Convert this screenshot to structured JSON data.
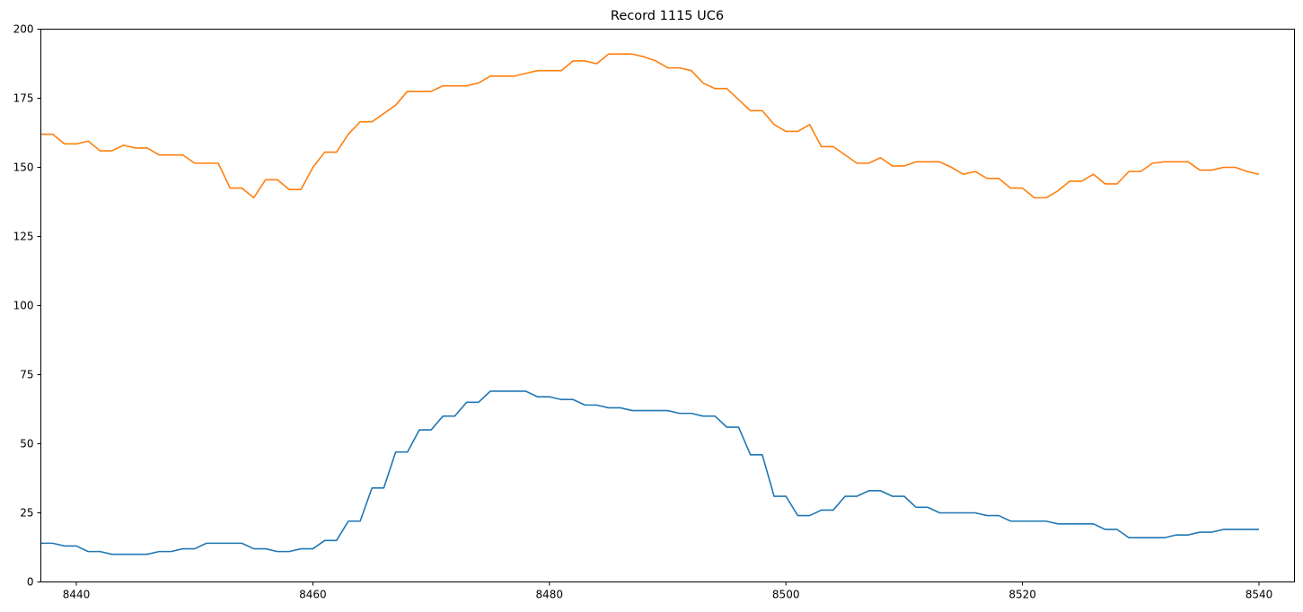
{
  "chart_data": {
    "type": "line",
    "title": "Record 1115 UC6",
    "xlabel": "",
    "ylabel": "",
    "xlim": [
      8437,
      8543
    ],
    "ylim": [
      0,
      200
    ],
    "xticks": [
      8440,
      8460,
      8480,
      8500,
      8520,
      8540
    ],
    "yticks": [
      0,
      25,
      50,
      75,
      100,
      125,
      150,
      175,
      200
    ],
    "grid": false,
    "legend": "none",
    "x": [
      8437,
      8438,
      8439,
      8440,
      8441,
      8442,
      8443,
      8444,
      8445,
      8446,
      8447,
      8448,
      8449,
      8450,
      8451,
      8452,
      8453,
      8454,
      8455,
      8456,
      8457,
      8458,
      8459,
      8460,
      8461,
      8462,
      8463,
      8464,
      8465,
      8466,
      8467,
      8468,
      8469,
      8470,
      8471,
      8472,
      8473,
      8474,
      8475,
      8476,
      8477,
      8478,
      8479,
      8480,
      8481,
      8482,
      8483,
      8484,
      8485,
      8486,
      8487,
      8488,
      8489,
      8490,
      8491,
      8492,
      8493,
      8494,
      8495,
      8496,
      8497,
      8498,
      8499,
      8500,
      8501,
      8502,
      8503,
      8504,
      8505,
      8506,
      8507,
      8508,
      8509,
      8510,
      8511,
      8512,
      8513,
      8514,
      8515,
      8516,
      8517,
      8518,
      8519,
      8520,
      8521,
      8522,
      8523,
      8524,
      8525,
      8526,
      8527,
      8528,
      8529,
      8530,
      8531,
      8532,
      8533,
      8534,
      8535,
      8536,
      8537,
      8538,
      8539,
      8540
    ],
    "series": [
      {
        "color": "#1f77b4",
        "values": [
          14,
          14,
          13,
          13,
          11,
          11,
          10,
          10,
          10,
          10,
          11,
          11,
          12,
          12,
          14,
          14,
          14,
          14,
          12,
          12,
          11,
          11,
          12,
          12,
          15,
          15,
          22,
          22,
          34,
          34,
          47,
          47,
          55,
          55,
          60,
          60,
          65,
          65,
          69,
          69,
          69,
          69,
          67,
          67,
          66,
          66,
          64,
          64,
          63,
          63,
          62,
          62,
          62,
          62,
          61,
          61,
          60,
          60,
          56,
          56,
          46,
          46,
          31,
          31,
          24,
          24,
          26,
          26,
          31,
          31,
          33,
          33,
          31,
          31,
          27,
          27,
          25,
          25,
          25,
          25,
          24,
          24,
          22,
          22,
          22,
          22,
          21,
          21,
          21,
          21,
          19,
          19,
          16,
          16,
          16,
          16,
          17,
          17,
          18,
          18,
          19,
          19,
          19,
          19
        ]
      },
      {
        "color": "#ff7f0e",
        "values": [
          162,
          162,
          158.5,
          158.5,
          159.5,
          156,
          156,
          158,
          157,
          157,
          154.5,
          154.5,
          154.5,
          151.5,
          151.5,
          151.5,
          142.5,
          142.5,
          139,
          145.5,
          145.5,
          142,
          142,
          150,
          155.5,
          155.5,
          162,
          166.5,
          166.5,
          169.5,
          172.5,
          177.5,
          177.5,
          177.5,
          179.5,
          179.5,
          179.5,
          180.5,
          183,
          183,
          183,
          184,
          185,
          185,
          185,
          188.5,
          188.5,
          187.5,
          191,
          191,
          191,
          190,
          188.5,
          186,
          186,
          185,
          180.5,
          178.5,
          178.5,
          174.5,
          170.5,
          170.5,
          165.5,
          163,
          163,
          165.5,
          157.5,
          157.5,
          154.5,
          151.5,
          151.5,
          153.5,
          150.5,
          150.5,
          152,
          152,
          152,
          150,
          147.5,
          148.5,
          146,
          146,
          142.5,
          142.5,
          139,
          139,
          141.5,
          145,
          145,
          147.5,
          144,
          144,
          148.5,
          148.5,
          151.5,
          152,
          152,
          152,
          149,
          149,
          150,
          150,
          148.5,
          147.5
        ]
      }
    ]
  }
}
